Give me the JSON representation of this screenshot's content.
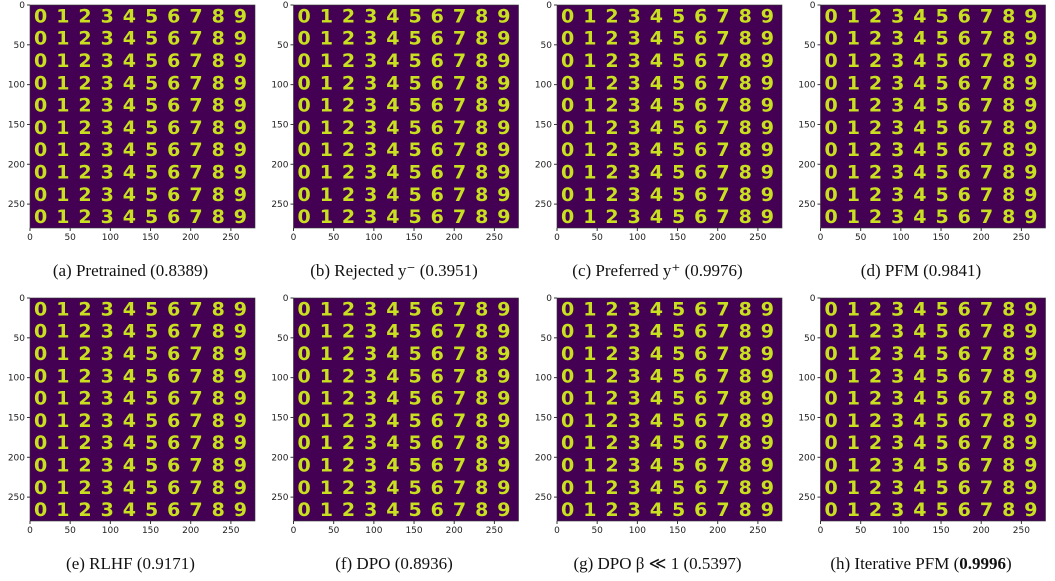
{
  "axes": {
    "lim": [
      0,
      280
    ],
    "xticks": [
      0,
      50,
      100,
      150,
      200,
      250
    ],
    "yticks": [
      0,
      50,
      100,
      150,
      200,
      250
    ]
  },
  "digits": "0123456789",
  "panels": [
    {
      "caption": [
        "(a) Pretrained (0.8389)"
      ]
    },
    {
      "caption": [
        "(b) Rejected y⁻ (0.3951)"
      ]
    },
    {
      "caption": [
        "(c) Preferred y⁺ (0.9976)"
      ]
    },
    {
      "caption": [
        "(d) PFM (0.9841)"
      ]
    },
    {
      "caption": [
        "(e) RLHF (0.9171)"
      ]
    },
    {
      "caption": [
        "(f) DPO (0.8936)"
      ]
    },
    {
      "caption": [
        "(g) DPO β ≪ 1 (0.5397)"
      ]
    },
    {
      "caption": [
        "(h) Iterative PFM (",
        "0.9996",
        ")"
      ],
      "bold_segment": 1
    }
  ]
}
